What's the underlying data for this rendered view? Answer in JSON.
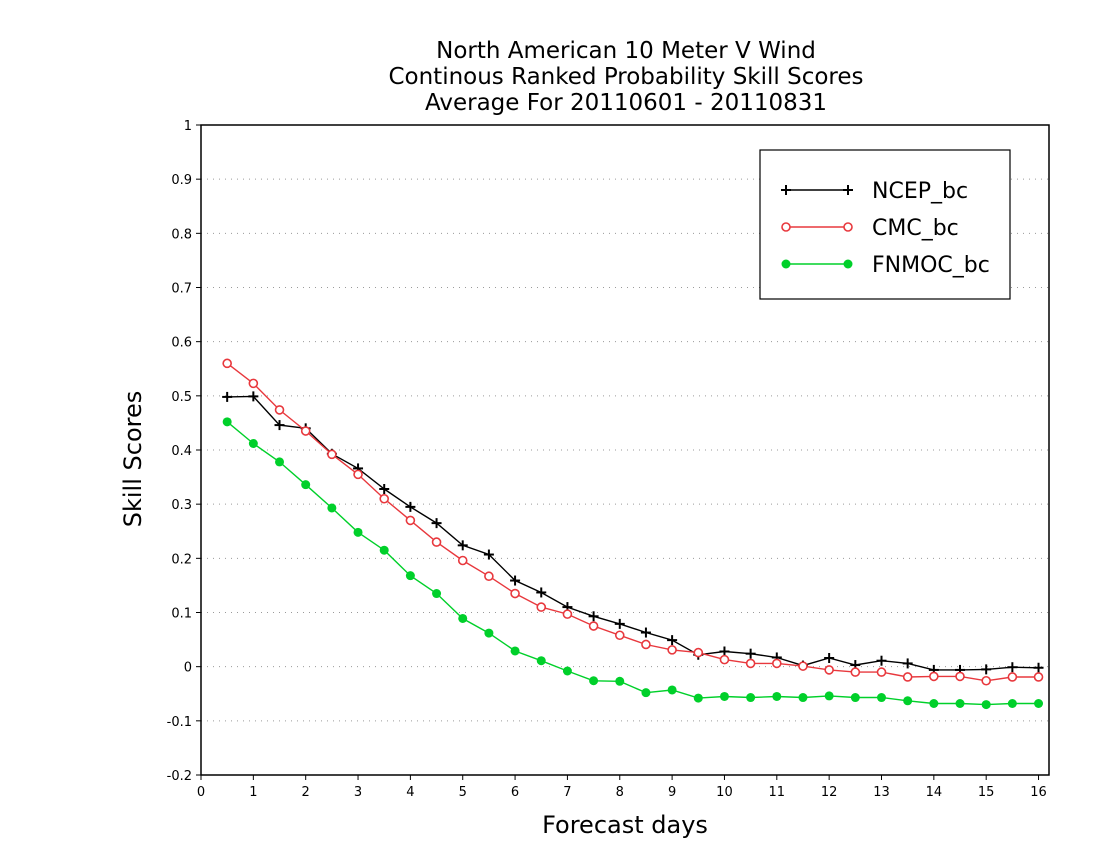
{
  "chart_data": {
    "type": "line",
    "title": [
      "North American 10 Meter V Wind",
      "Continous Ranked Probability Skill Scores",
      "Average For 20110601 - 20110831"
    ],
    "xlabel": "Forecast days",
    "ylabel": "Skill Scores",
    "xlim": [
      0,
      16.2
    ],
    "ylim": [
      -0.2,
      1
    ],
    "xticks": [
      0,
      1,
      2,
      3,
      4,
      5,
      6,
      7,
      8,
      9,
      10,
      11,
      12,
      13,
      14,
      15,
      16
    ],
    "yticks": [
      -0.2,
      -0.1,
      0,
      0.1,
      0.2,
      0.3,
      0.4,
      0.5,
      0.6,
      0.7,
      0.8,
      0.9,
      1
    ],
    "ytick_labels": [
      "-0.2",
      "-0.1",
      "0",
      "0.1",
      "0.2",
      "0.3",
      "0.4",
      "0.5",
      "0.6",
      "0.7",
      "0.8",
      "0.9",
      "1"
    ],
    "grid": "horizontal-dotted",
    "legend_position": "top-right",
    "x": [
      0.5,
      1,
      1.5,
      2,
      2.5,
      3,
      3.5,
      4,
      4.5,
      5,
      5.5,
      6,
      6.5,
      7,
      7.5,
      8,
      8.5,
      9,
      9.5,
      10,
      10.5,
      11,
      11.5,
      12,
      12.5,
      13,
      13.5,
      14,
      14.5,
      15,
      15.5,
      16
    ],
    "series": [
      {
        "name": "NCEP_bc",
        "color": "#000000",
        "marker": "plus",
        "values": [
          0.498,
          0.499,
          0.446,
          0.44,
          0.393,
          0.366,
          0.328,
          0.295,
          0.265,
          0.224,
          0.207,
          0.159,
          0.137,
          0.11,
          0.093,
          0.079,
          0.063,
          0.049,
          0.022,
          0.028,
          0.024,
          0.017,
          0.002,
          0.016,
          0.003,
          0.011,
          0.006,
          -0.006,
          -0.006,
          -0.005,
          -0.001,
          -0.002
        ]
      },
      {
        "name": "CMC_bc",
        "color": "#e8383d",
        "marker": "open-circle",
        "values": [
          0.56,
          0.523,
          0.474,
          0.435,
          0.392,
          0.355,
          0.31,
          0.27,
          0.23,
          0.196,
          0.167,
          0.135,
          0.11,
          0.097,
          0.075,
          0.058,
          0.041,
          0.031,
          0.026,
          0.013,
          0.006,
          0.006,
          0.001,
          -0.006,
          -0.01,
          -0.01,
          -0.019,
          -0.018,
          -0.018,
          -0.026,
          -0.019,
          -0.019
        ]
      },
      {
        "name": "FNMOC_bc",
        "color": "#00d02a",
        "marker": "filled-circle",
        "values": [
          0.452,
          0.412,
          0.378,
          0.336,
          0.293,
          0.248,
          0.215,
          0.168,
          0.135,
          0.089,
          0.062,
          0.029,
          0.011,
          -0.008,
          -0.026,
          -0.027,
          -0.048,
          -0.043,
          -0.058,
          -0.055,
          -0.057,
          -0.055,
          -0.057,
          -0.054,
          -0.057,
          -0.057,
          -0.063,
          -0.068,
          -0.068,
          -0.07,
          -0.068,
          -0.068
        ]
      }
    ]
  }
}
